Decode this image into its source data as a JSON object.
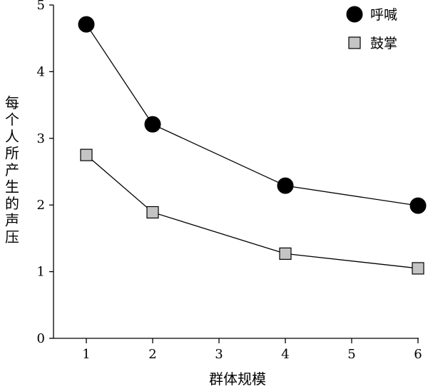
{
  "chart_data": {
    "type": "line",
    "xlabel": "群体规模",
    "ylabel": "每个人所产生的声压",
    "x_ticks": [
      "1",
      "2",
      "3",
      "4",
      "5",
      "6"
    ],
    "y_ticks": [
      "0",
      "1",
      "2",
      "3",
      "4",
      "5"
    ],
    "xlim": [
      0.5,
      6.2
    ],
    "ylim": [
      0,
      5
    ],
    "grid": false,
    "legend_position": "top-right",
    "series": [
      {
        "name": "呼喊",
        "marker": "circle",
        "color": "#000000",
        "x": [
          1,
          2,
          4,
          6
        ],
        "y": [
          4.71,
          3.21,
          2.29,
          1.99
        ]
      },
      {
        "name": "鼓掌",
        "marker": "square",
        "color": "#c4c4c4",
        "x": [
          1,
          2,
          4,
          6
        ],
        "y": [
          2.75,
          1.89,
          1.27,
          1.05
        ]
      }
    ]
  }
}
